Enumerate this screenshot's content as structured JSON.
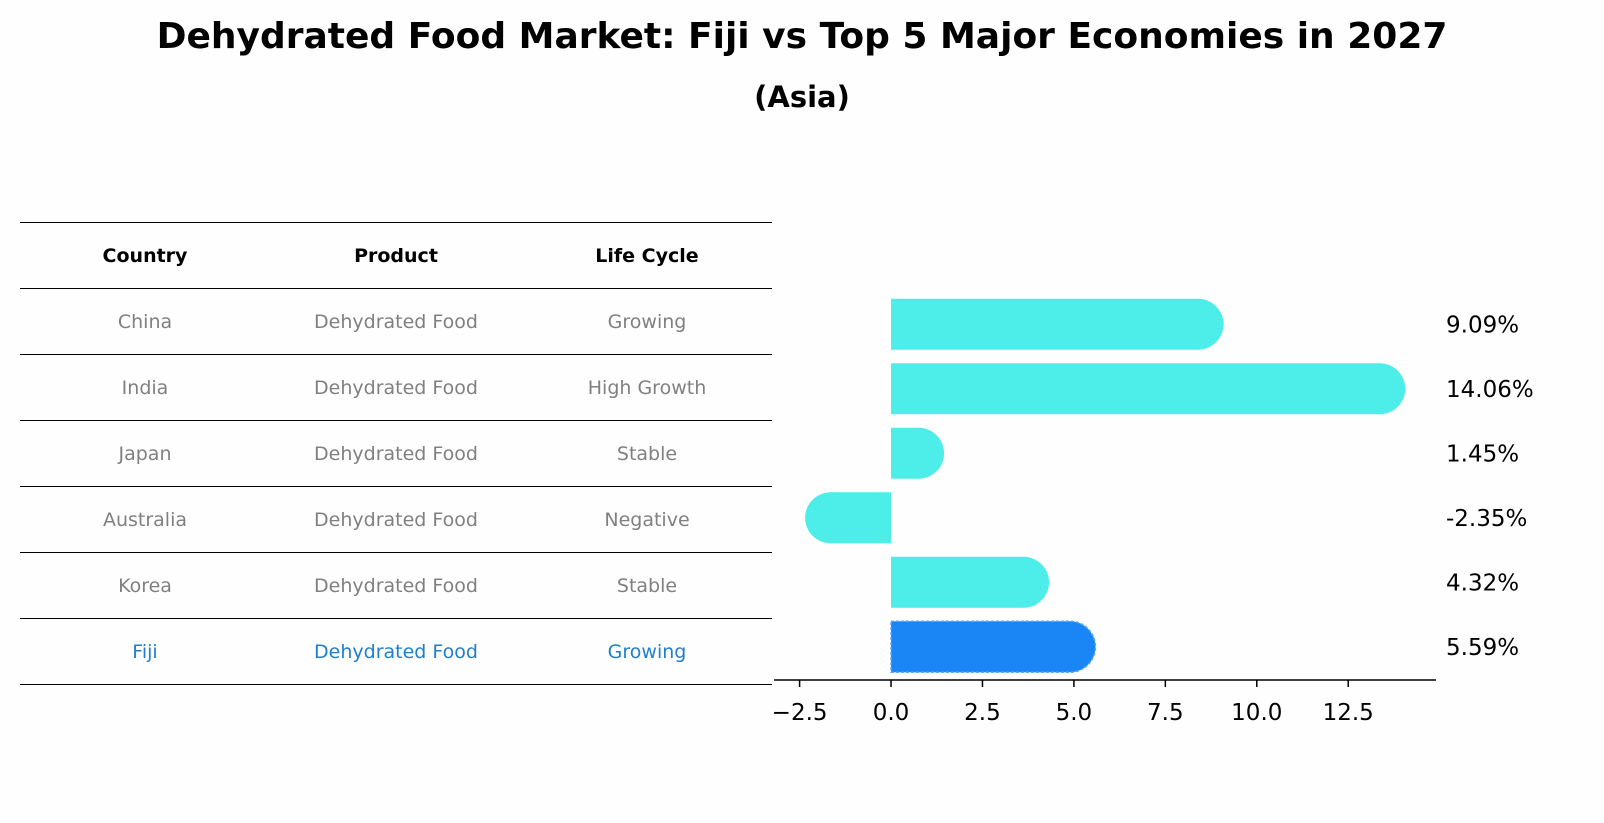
{
  "title": "Dehydrated Food Market: Fiji vs Top 5 Major Economies in 2027",
  "subtitle": "(Asia)",
  "table": {
    "headers": [
      "Country",
      "Product",
      "Life Cycle"
    ],
    "rows": [
      [
        "China",
        "Dehydrated Food",
        "Growing"
      ],
      [
        "India",
        "Dehydrated Food",
        "High Growth"
      ],
      [
        "Japan",
        "Dehydrated Food",
        "Stable"
      ],
      [
        "Australia",
        "Dehydrated Food",
        "Negative"
      ],
      [
        "Korea",
        "Dehydrated Food",
        "Stable"
      ],
      [
        "Fiji",
        "Dehydrated Food",
        "Growing"
      ]
    ],
    "highlight_row": 5,
    "text_color": "#808080",
    "highlight_color": "#1f7fce"
  },
  "chart_data": {
    "type": "bar",
    "orientation": "horizontal",
    "categories": [
      "China",
      "India",
      "Japan",
      "Australia",
      "Korea",
      "Fiji"
    ],
    "values": [
      9.09,
      14.06,
      1.45,
      -2.35,
      4.32,
      5.59
    ],
    "value_labels": [
      "9.09%",
      "14.06%",
      "1.45%",
      "-2.35%",
      "4.32%",
      "5.59%"
    ],
    "xlim": [
      -3.2,
      14.9
    ],
    "xticks": [
      -2.5,
      0.0,
      2.5,
      5.0,
      7.5,
      10.0,
      12.5
    ],
    "xtick_labels": [
      "−2.5",
      "0.0",
      "2.5",
      "5.0",
      "7.5",
      "10.0",
      "12.5"
    ],
    "bar_color": "#4deeea",
    "highlight_color": "#1a86f5",
    "highlight_index": 5,
    "grid": false
  }
}
